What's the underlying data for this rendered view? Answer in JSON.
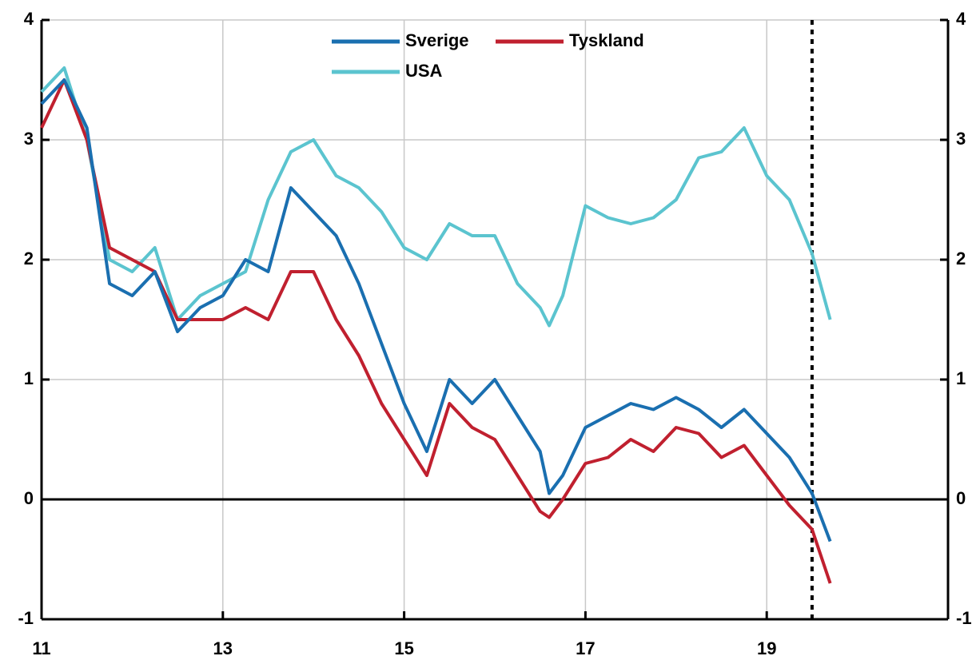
{
  "chart_data": {
    "type": "line",
    "x": [
      11.0,
      11.25,
      11.5,
      11.75,
      12.0,
      12.25,
      12.5,
      12.75,
      13.0,
      13.25,
      13.5,
      13.75,
      14.0,
      14.25,
      14.5,
      14.75,
      15.0,
      15.25,
      15.5,
      15.75,
      16.0,
      16.25,
      16.5,
      16.6,
      16.75,
      17.0,
      17.25,
      17.5,
      17.75,
      18.0,
      18.25,
      18.5,
      18.75,
      19.0,
      19.25,
      19.5,
      19.7
    ],
    "series": [
      {
        "name": "Sverige",
        "color": "#1a6fb0",
        "values": [
          3.3,
          3.5,
          3.1,
          1.8,
          1.7,
          1.9,
          1.4,
          1.6,
          1.7,
          2.0,
          1.9,
          2.6,
          2.4,
          2.2,
          1.8,
          1.3,
          0.8,
          0.4,
          1.0,
          0.8,
          1.0,
          0.7,
          0.4,
          0.05,
          0.2,
          0.6,
          0.7,
          0.8,
          0.75,
          0.85,
          0.75,
          0.6,
          0.75,
          0.55,
          0.35,
          0.05,
          -0.35
        ]
      },
      {
        "name": "Tyskland",
        "color": "#c0202f",
        "values": [
          3.1,
          3.5,
          3.0,
          2.1,
          2.0,
          1.9,
          1.5,
          1.5,
          1.5,
          1.6,
          1.5,
          1.9,
          1.9,
          1.5,
          1.2,
          0.8,
          0.5,
          0.2,
          0.8,
          0.6,
          0.5,
          0.2,
          -0.1,
          -0.15,
          0.0,
          0.3,
          0.35,
          0.5,
          0.4,
          0.6,
          0.55,
          0.35,
          0.45,
          0.2,
          -0.05,
          -0.25,
          -0.7
        ]
      },
      {
        "name": "USA",
        "color": "#5bc4cf",
        "values": [
          3.4,
          3.6,
          3.0,
          2.0,
          1.9,
          2.1,
          1.5,
          1.7,
          1.8,
          1.9,
          2.5,
          2.9,
          3.0,
          2.7,
          2.6,
          2.4,
          2.1,
          2.0,
          2.3,
          2.2,
          2.2,
          1.8,
          1.6,
          1.45,
          1.7,
          2.45,
          2.35,
          2.3,
          2.35,
          2.5,
          2.85,
          2.9,
          3.1,
          2.7,
          2.5,
          2.05,
          1.5
        ]
      }
    ],
    "xlim": [
      11,
      21
    ],
    "xticks": [
      11,
      13,
      15,
      17,
      19
    ],
    "ylim": [
      -1,
      4
    ],
    "yticks": [
      -1,
      0,
      1,
      2,
      3,
      4
    ],
    "vline": 19.5,
    "grid": true
  }
}
